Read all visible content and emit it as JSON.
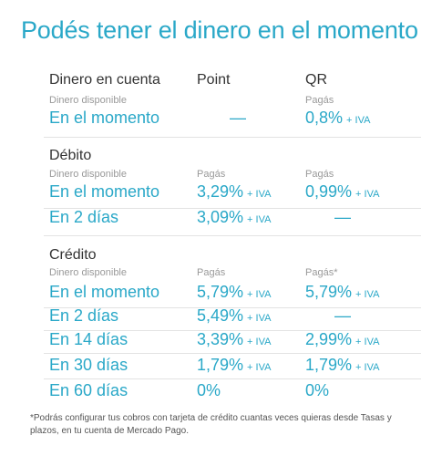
{
  "title": "Podés tener el dinero en el momento",
  "headers": {
    "col1": "Dinero en cuenta",
    "col2": "Point",
    "col3": "QR"
  },
  "iva": "+ IVA",
  "dash": "—",
  "sections": {
    "cuenta": {
      "sub": {
        "col1": "Dinero disponible",
        "col3": "Pagás"
      },
      "rows": [
        {
          "label": "En el momento",
          "point": "—",
          "qr": "0,8%"
        }
      ]
    },
    "debito": {
      "title": "Débito",
      "sub": {
        "col1": "Dinero disponible",
        "col2": "Pagás",
        "col3": "Pagás"
      },
      "rows": [
        {
          "label": "En el momento",
          "point": "3,29%",
          "qr": "0,99%"
        },
        {
          "label": "En 2 días",
          "point": "3,09%",
          "qr": "—"
        }
      ]
    },
    "credito": {
      "title": "Crédito",
      "sub": {
        "col1": "Dinero disponible",
        "col2": "Pagás",
        "col3": "Pagás*"
      },
      "rows": [
        {
          "label": "En el momento",
          "point": "5,79%",
          "qr": "5,79%"
        },
        {
          "label": "En 2 días",
          "point": "5,49%",
          "qr": "—"
        },
        {
          "label": "En 14 días",
          "point": "3,39%",
          "qr": "2,99%"
        },
        {
          "label": "En 30 días",
          "point": "1,79%",
          "qr": "1,79%"
        },
        {
          "label": "En 60 días",
          "point": "0%",
          "qr": "0%"
        }
      ]
    }
  },
  "footnote": "*Podrás configurar tus cobros con tarjeta de crédito cuantas veces quieras desde Tasas y plazos, en tu cuenta de Mercado Pago."
}
